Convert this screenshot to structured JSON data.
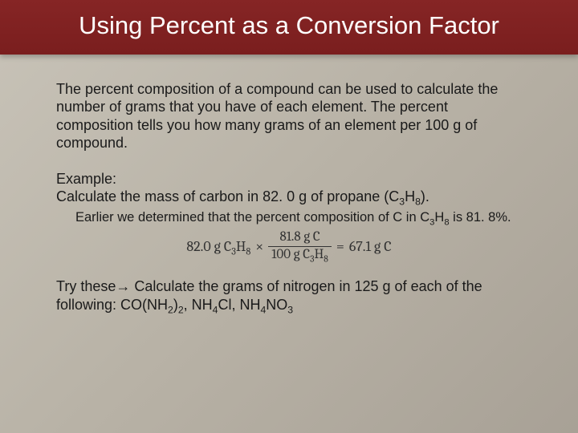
{
  "title": "Using Percent as a Conversion Factor",
  "paragraph": "The percent composition of a compound can be used to calculate the number of grams that you have of each element. The percent composition tells you how many grams of an element per 100 g of compound.",
  "example_label": "Example:",
  "example_text_a": "Calculate the mass of carbon in 82. 0 g of propane (C",
  "example_text_b": "H",
  "example_text_c": ").",
  "sub3": "3",
  "sub8": "8",
  "subnote_a": "Earlier we determined that the percent composition of C in C",
  "subnote_b": "H",
  "subnote_c": " is 81. 8%.",
  "eq": {
    "lhs_a": "82.0 g C",
    "lhs_b": "H",
    "times": "×",
    "num": "81.8 g C",
    "den_a": "100 g C",
    "den_b": "H",
    "eq_sign": "=",
    "rhs": "67.1 g C"
  },
  "try_a": "Try these",
  "arrow": "→",
  "try_b": " Calculate the grams of nitrogen in 125 g of each of the following: CO(NH",
  "try_c": ")",
  "try_d": ", NH",
  "try_e": "Cl, NH",
  "try_f": "NO",
  "sub2": "2",
  "sub4": "4",
  "colors": {
    "banner_bg": "#7d1f1f",
    "banner_text": "#ffffff",
    "body_text": "#1a1a1a",
    "page_bg_light": "#c8c3b8",
    "page_bg_dark": "#a8a196"
  }
}
